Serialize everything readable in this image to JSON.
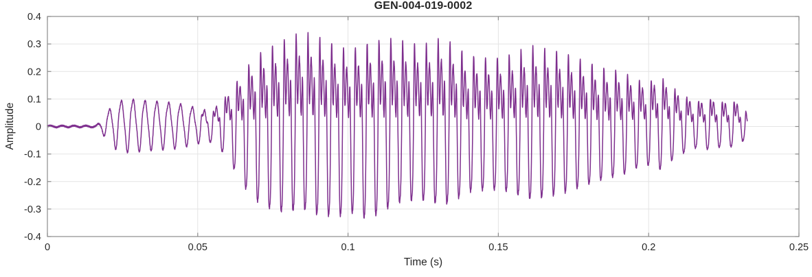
{
  "figure": {
    "background": "#ffffff"
  },
  "chart_data": {
    "type": "line",
    "title": "GEN-004-019-0002",
    "xlabel": "Time (s)",
    "ylabel": "Amplitude",
    "xlim": [
      0,
      0.25
    ],
    "ylim": [
      -0.4,
      0.4
    ],
    "xticks": [
      0,
      0.05,
      0.1,
      0.15,
      0.2,
      0.25
    ],
    "xtick_labels": [
      "0",
      "0.05",
      "0.1",
      "0.15",
      "0.2",
      "0.25"
    ],
    "yticks": [
      -0.4,
      -0.3,
      -0.2,
      -0.1,
      0,
      0.1,
      0.2,
      0.3,
      0.4
    ],
    "ytick_labels": [
      "-0.4",
      "-0.3",
      "-0.2",
      "-0.1",
      "0",
      "0.1",
      "0.2",
      "0.3",
      "0.4"
    ],
    "grid": true,
    "legend": null,
    "line_color": "#7E2F8E",
    "grid_color": "#E4E4E4",
    "axis_color": "#8C8C8C",
    "text_color": "#262626",
    "waveform": {
      "description": "speech-like audio waveform, silence then voiced segment, peak amplitude ~0.34 near t=0.085s, deepest trough ~-0.33 near t=0.10s, decays to end of data at t~0.233s",
      "t_end": 0.2328,
      "onset": 0.0165,
      "f0_hz": 254,
      "harmonic_phases": [
        0,
        1.25,
        2.4,
        0.7,
        1.9
      ],
      "envelope": [
        [
          0,
          0.003
        ],
        [
          0.016,
          0.003
        ],
        [
          0.0175,
          0.015
        ],
        [
          0.02,
          0.055
        ],
        [
          0.023,
          0.09
        ],
        [
          0.027,
          0.1
        ],
        [
          0.032,
          0.095
        ],
        [
          0.038,
          0.09
        ],
        [
          0.043,
          0.085
        ],
        [
          0.048,
          0.072
        ],
        [
          0.052,
          0.06
        ],
        [
          0.055,
          0.06
        ],
        [
          0.058,
          0.09
        ],
        [
          0.061,
          0.13
        ],
        [
          0.064,
          0.18
        ],
        [
          0.068,
          0.24
        ],
        [
          0.072,
          0.28
        ],
        [
          0.076,
          0.3
        ],
        [
          0.08,
          0.32
        ],
        [
          0.085,
          0.34
        ],
        [
          0.089,
          0.33
        ],
        [
          0.093,
          0.31
        ],
        [
          0.097,
          0.29
        ],
        [
          0.101,
          0.28
        ],
        [
          0.105,
          0.3
        ],
        [
          0.109,
          0.31
        ],
        [
          0.113,
          0.32
        ],
        [
          0.118,
          0.31
        ],
        [
          0.122,
          0.3
        ],
        [
          0.127,
          0.3
        ],
        [
          0.131,
          0.32
        ],
        [
          0.135,
          0.3
        ],
        [
          0.14,
          0.26
        ],
        [
          0.146,
          0.25
        ],
        [
          0.151,
          0.25
        ],
        [
          0.156,
          0.27
        ],
        [
          0.161,
          0.29
        ],
        [
          0.166,
          0.28
        ],
        [
          0.171,
          0.27
        ],
        [
          0.176,
          0.25
        ],
        [
          0.181,
          0.23
        ],
        [
          0.186,
          0.21
        ],
        [
          0.191,
          0.2
        ],
        [
          0.196,
          0.17
        ],
        [
          0.2,
          0.16
        ],
        [
          0.204,
          0.18
        ],
        [
          0.208,
          0.14
        ],
        [
          0.212,
          0.11
        ],
        [
          0.216,
          0.09
        ],
        [
          0.22,
          0.1
        ],
        [
          0.224,
          0.09
        ],
        [
          0.229,
          0.09
        ],
        [
          0.2328,
          0.05
        ]
      ],
      "brightness": [
        [
          0,
          0
        ],
        [
          0.016,
          0
        ],
        [
          0.02,
          0.1
        ],
        [
          0.048,
          0.12
        ],
        [
          0.053,
          0.45
        ],
        [
          0.058,
          0.7
        ],
        [
          0.065,
          0.95
        ],
        [
          0.07,
          1
        ],
        [
          0.185,
          1
        ],
        [
          0.2,
          0.85
        ],
        [
          0.2328,
          0.75
        ]
      ],
      "neg_scale": [
        [
          0,
          0.95
        ],
        [
          0.055,
          0.95
        ],
        [
          0.065,
          1.08
        ],
        [
          0.078,
          1.0
        ],
        [
          0.085,
          0.88
        ],
        [
          0.097,
          1.12
        ],
        [
          0.107,
          1.1
        ],
        [
          0.115,
          0.88
        ],
        [
          0.15,
          0.92
        ],
        [
          0.2,
          0.88
        ],
        [
          0.2328,
          0.8
        ]
      ],
      "noise_floor": 0.003,
      "noise_frac": 0.02
    }
  }
}
